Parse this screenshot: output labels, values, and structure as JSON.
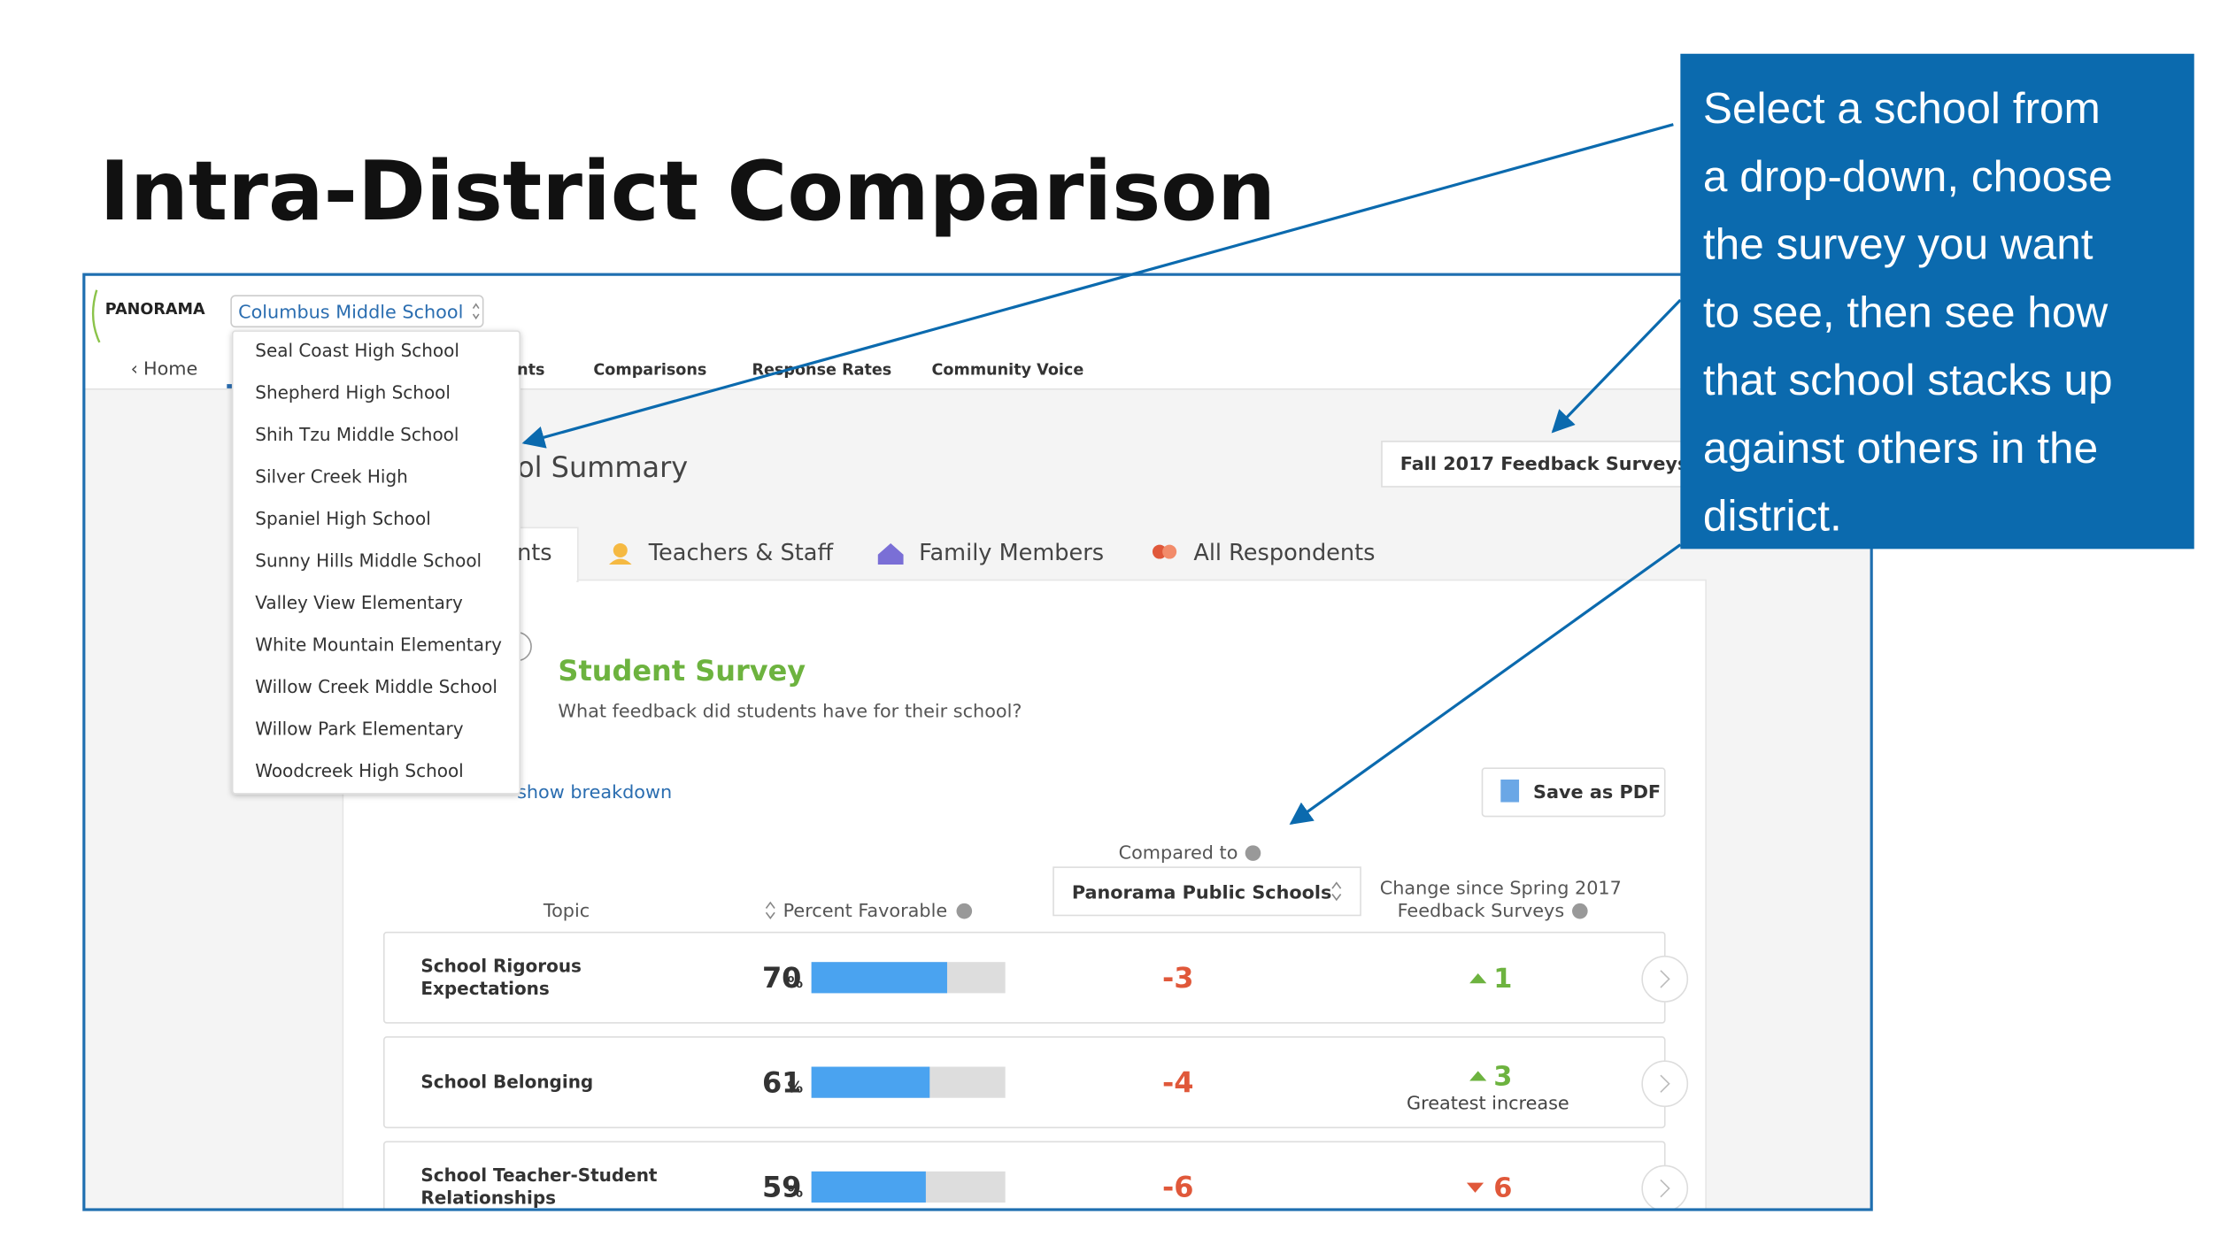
{
  "slide": {
    "title": "Intra-District Comparison",
    "callout_lines": [
      "Select a school from",
      "a drop-down, choose",
      "the survey you want",
      "to see, then see how",
      "that school stacks up",
      "against others in the",
      "district."
    ]
  },
  "app": {
    "logo": "PANORAMA",
    "school_select": "Columbus Middle School",
    "home": "Home",
    "nav": [
      "nts",
      "Comparisons",
      "Response Rates",
      "Community Voice"
    ],
    "dropdown": [
      "Seal Coast High School",
      "Shepherd High School",
      "Shih Tzu Middle School",
      "Silver Creek High",
      "Spaniel High School",
      "Sunny Hills Middle School",
      "Valley View Elementary",
      "White Mountain Elementary",
      "Willow Creek Middle School",
      "Willow Park Elementary",
      "Woodcreek High School"
    ],
    "page_heading": "ol Summary",
    "survey_select": "Fall 2017 Feedback Surveys",
    "respondent_tabs": [
      "nts",
      "Teachers & Staff",
      "Family Members",
      "All Respondents"
    ],
    "survey_title": "Student Survey",
    "survey_subtitle": "What feedback did students have for their school?",
    "breakdown_link": "show breakdown",
    "save_pdf": "Save as PDF",
    "compared_to": "Compared to",
    "comparison_select": "Panorama Public Schools",
    "headers": {
      "topic": "Topic",
      "percent": "Percent Favorable",
      "change": [
        "Change since Spring 2017",
        "Feedback Surveys"
      ]
    },
    "percent_unit": "%",
    "rows": [
      {
        "topic": [
          "School Rigorous",
          "Expectations"
        ],
        "percent": 70,
        "compare": -3,
        "change": 1,
        "direction": "up"
      },
      {
        "topic": [
          "School Belonging"
        ],
        "percent": 61,
        "compare": -4,
        "change": 3,
        "direction": "up",
        "change_note": "Greatest increase"
      },
      {
        "topic": [
          "School Teacher-Student",
          "Relationships"
        ],
        "percent": 59,
        "compare": -6,
        "change": 6,
        "direction": "down"
      }
    ]
  }
}
